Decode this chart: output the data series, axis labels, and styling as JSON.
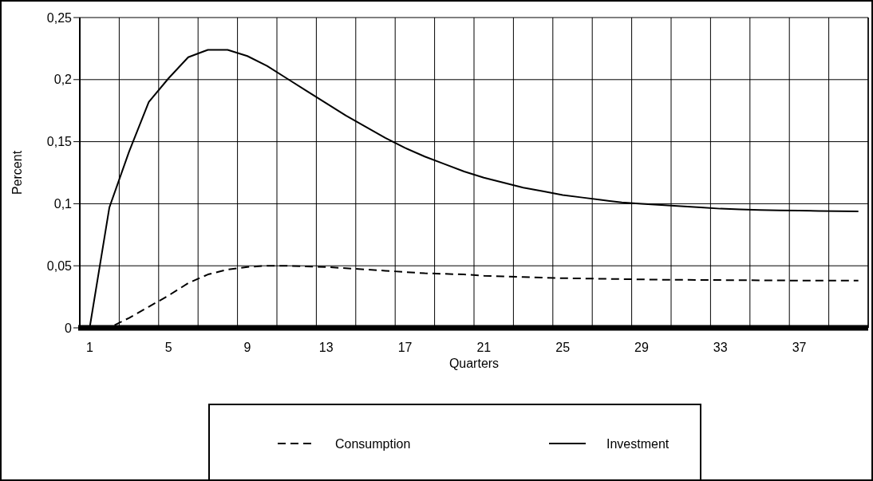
{
  "chart_data": {
    "type": "line",
    "xlabel": "Quarters",
    "ylabel": "Percent",
    "x": [
      1,
      2,
      3,
      4,
      5,
      6,
      7,
      8,
      9,
      10,
      11,
      12,
      13,
      14,
      15,
      16,
      17,
      18,
      19,
      20,
      21,
      22,
      23,
      24,
      25,
      26,
      27,
      28,
      29,
      30,
      31,
      32,
      33,
      34,
      35,
      36,
      37,
      38,
      39,
      40
    ],
    "xlim": [
      0.5,
      40.5
    ],
    "xticks": [
      1,
      {
        "value": 2.5,
        "label": null
      },
      {
        "value": 4.5,
        "label": null
      },
      5,
      {
        "value": 6.5,
        "label": null
      },
      {
        "value": 8.5,
        "label": null
      },
      9,
      {
        "value": 10.5,
        "label": null
      },
      {
        "value": 12.5,
        "label": null
      },
      13,
      {
        "value": 14.5,
        "label": null
      },
      {
        "value": 16.5,
        "label": null
      },
      17,
      {
        "value": 18.5,
        "label": null
      },
      {
        "value": 20.5,
        "label": null
      },
      21,
      {
        "value": 22.5,
        "label": null
      },
      {
        "value": 24.5,
        "label": null
      },
      25,
      {
        "value": 26.5,
        "label": null
      },
      {
        "value": 28.5,
        "label": null
      },
      29,
      {
        "value": 30.5,
        "label": null
      },
      {
        "value": 32.5,
        "label": null
      },
      33,
      {
        "value": 34.5,
        "label": null
      },
      {
        "value": 36.5,
        "label": null
      },
      37,
      {
        "value": 38.5,
        "label": null
      },
      {
        "value": 40.5,
        "label": null
      }
    ],
    "ylim": [
      0,
      0.25
    ],
    "yticks": [
      0,
      {
        "value": 0.05,
        "label": "0,05"
      },
      {
        "value": 0.1,
        "label": "0,1"
      },
      {
        "value": 0.15,
        "label": "0,15"
      },
      {
        "value": 0.2,
        "label": "0,2"
      },
      {
        "value": 0.25,
        "label": "0,25"
      }
    ],
    "grid": true,
    "legend": "bottom",
    "marker": "none",
    "series": [
      {
        "name": "Consumption",
        "color": "#000000",
        "line_style": "dashed",
        "values": [
          0,
          0,
          0.008,
          0.017,
          0.026,
          0.036,
          0.043,
          0.047,
          0.049,
          0.05,
          0.05,
          0.0495,
          0.049,
          0.048,
          0.047,
          0.046,
          0.045,
          0.044,
          0.0435,
          0.043,
          0.042,
          0.0415,
          0.041,
          0.0405,
          0.04,
          0.0398,
          0.0395,
          0.0393,
          0.039,
          0.0388,
          0.0387,
          0.0386,
          0.0385,
          0.0384,
          0.0383,
          0.0382,
          0.0381,
          0.0381,
          0.038,
          0.038
        ]
      },
      {
        "name": "Investment",
        "color": "#000000",
        "line_style": "solid",
        "values": [
          0,
          0.097,
          0.142,
          0.182,
          0.201,
          0.218,
          0.224,
          0.224,
          0.219,
          0.211,
          0.201,
          0.191,
          0.181,
          0.171,
          0.162,
          0.153,
          0.145,
          0.138,
          0.132,
          0.126,
          0.121,
          0.117,
          0.113,
          0.11,
          0.107,
          0.105,
          0.103,
          0.101,
          0.1,
          0.099,
          0.098,
          0.097,
          0.096,
          0.0955,
          0.095,
          0.0947,
          0.0944,
          0.0942,
          0.094,
          0.0938
        ]
      }
    ]
  }
}
